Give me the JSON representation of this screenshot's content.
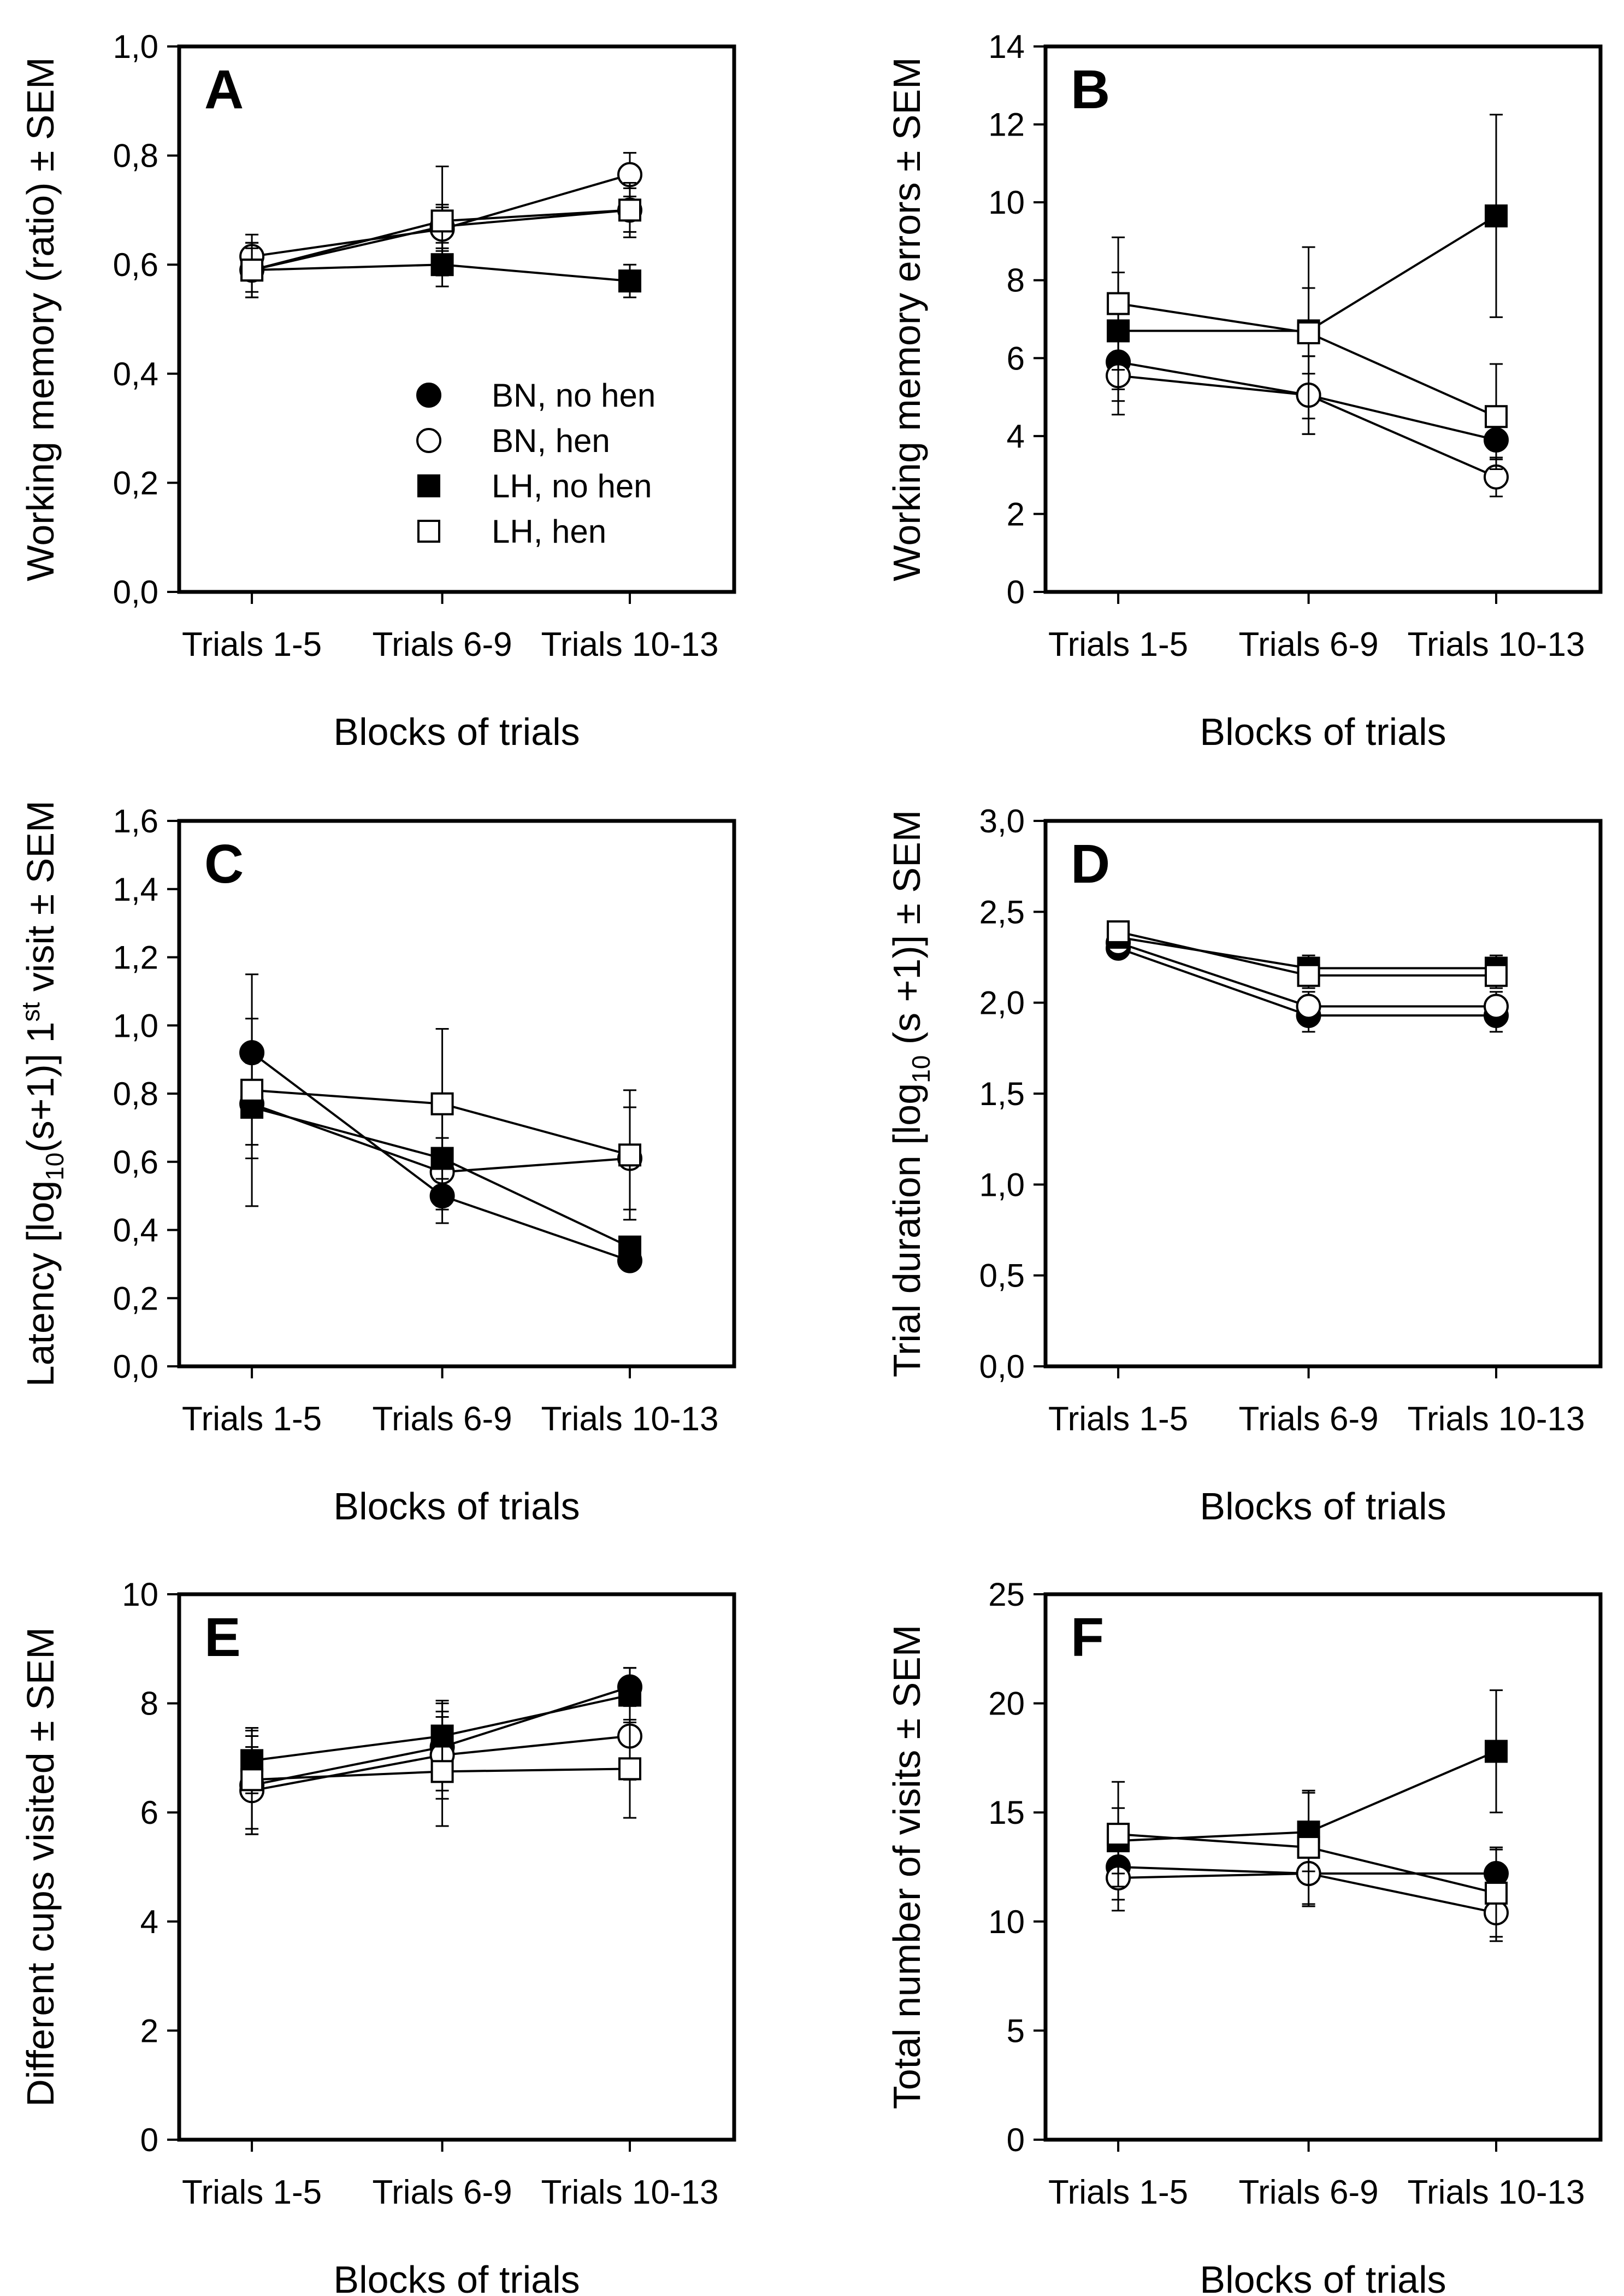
{
  "legend": [
    {
      "series": "BN_no_hen",
      "label": "BN, no hen",
      "marker": "circle",
      "fill": "#000000"
    },
    {
      "series": "BN_hen",
      "label": "BN, hen",
      "marker": "circle",
      "fill": "#ffffff"
    },
    {
      "series": "LH_no_hen",
      "label": "LH, no hen",
      "marker": "square",
      "fill": "#000000"
    },
    {
      "series": "LH_hen",
      "label": "LH, hen",
      "marker": "square",
      "fill": "#ffffff"
    }
  ],
  "chart_data": [
    {
      "panel": "A",
      "type": "line",
      "categories": [
        "Trials 1-5",
        "Trials 6-9",
        "Trials 10-13"
      ],
      "xlabel": "Blocks of trials",
      "ylabel": "Working memory (ratio) ± SEM",
      "ylim": [
        0,
        1
      ],
      "yticks": [
        "0,0",
        "0,2",
        "0,4",
        "0,6",
        "0,8",
        "1,0"
      ],
      "legend": true,
      "series": [
        {
          "name": "BN_no_hen",
          "values": [
            0.59,
            0.67,
            0.7
          ],
          "sem": [
            0.05,
            0.04,
            0.04
          ]
        },
        {
          "name": "BN_hen",
          "values": [
            0.615,
            0.665,
            0.765
          ],
          "sem": [
            0.04,
            0.04,
            0.04
          ]
        },
        {
          "name": "LH_no_hen",
          "values": [
            0.59,
            0.6,
            0.57
          ],
          "sem": [
            0.04,
            0.04,
            0.03
          ]
        },
        {
          "name": "LH_hen",
          "values": [
            0.59,
            0.68,
            0.7
          ],
          "sem": [
            0.05,
            0.1,
            0.05
          ]
        }
      ]
    },
    {
      "panel": "B",
      "type": "line",
      "categories": [
        "Trials 1-5",
        "Trials 6-9",
        "Trials 10-13"
      ],
      "xlabel": "Blocks of trials",
      "ylabel": "Working memory errors ± SEM",
      "ylim": [
        0,
        14
      ],
      "yticks": [
        "0",
        "2",
        "4",
        "6",
        "8",
        "10",
        "12",
        "14"
      ],
      "series": [
        {
          "name": "BN_no_hen",
          "values": [
            5.9,
            5.05,
            3.9
          ],
          "sem": [
            1.0,
            1.0,
            0.5
          ]
        },
        {
          "name": "BN_hen",
          "values": [
            5.55,
            5.05,
            2.95
          ],
          "sem": [
            1.0,
            1.0,
            0.5
          ]
        },
        {
          "name": "LH_no_hen",
          "values": [
            6.7,
            6.7,
            9.65
          ],
          "sem": [
            1.5,
            1.1,
            2.6
          ]
        },
        {
          "name": "LH_hen",
          "values": [
            7.4,
            6.65,
            4.5
          ],
          "sem": [
            1.7,
            2.2,
            1.35
          ]
        }
      ]
    },
    {
      "panel": "C",
      "type": "line",
      "categories": [
        "Trials 1-5",
        "Trials 6-9",
        "Trials 10-13"
      ],
      "xlabel": "Blocks of trials",
      "ylabel": "Latency [log",
      "ylabel_sub": "10",
      "ylabel_mid": "(s+1)] 1",
      "ylabel_sup": "st",
      "ylabel_end": " visit  ± SEM",
      "ylim": [
        0,
        1.6
      ],
      "yticks": [
        "0,0",
        "0,2",
        "0,4",
        "0,6",
        "0,8",
        "1,0",
        "1,2",
        "1,4",
        "1,6"
      ],
      "series": [
        {
          "name": "BN_no_hen",
          "values": [
            0.92,
            0.5,
            0.31
          ],
          "sem": [
            0.1,
            0.08,
            0.02
          ]
        },
        {
          "name": "BN_hen",
          "values": [
            0.77,
            0.57,
            0.61
          ],
          "sem": [
            0.12,
            0.1,
            0.15
          ]
        },
        {
          "name": "LH_no_hen",
          "values": [
            0.76,
            0.61,
            0.35
          ],
          "sem": [
            0.15,
            0.15,
            0.03
          ]
        },
        {
          "name": "LH_hen",
          "values": [
            0.81,
            0.77,
            0.62
          ],
          "sem": [
            0.34,
            0.22,
            0.19
          ]
        }
      ]
    },
    {
      "panel": "D",
      "type": "line",
      "categories": [
        "Trials 1-5",
        "Trials 6-9",
        "Trials 10-13"
      ],
      "xlabel": "Blocks of trials",
      "ylabel": "Trial duration [log",
      "ylabel_sub": "10",
      "ylabel_mid": " (s +1)] ± SEM",
      "ylim": [
        0,
        3
      ],
      "yticks": [
        "0,0",
        "0,5",
        "1,0",
        "1,5",
        "2,0",
        "2,5",
        "3,0"
      ],
      "series": [
        {
          "name": "BN_no_hen",
          "values": [
            2.3,
            1.93,
            1.93
          ],
          "sem": [
            0.04,
            0.09,
            0.09
          ]
        },
        {
          "name": "BN_hen",
          "values": [
            2.33,
            1.98,
            1.98
          ],
          "sem": [
            0.04,
            0.08,
            0.08
          ]
        },
        {
          "name": "LH_no_hen",
          "values": [
            2.36,
            2.19,
            2.19
          ],
          "sem": [
            0.04,
            0.07,
            0.07
          ]
        },
        {
          "name": "LH_hen",
          "values": [
            2.39,
            2.15,
            2.15
          ],
          "sem": [
            0.04,
            0.07,
            0.07
          ]
        }
      ]
    },
    {
      "panel": "E",
      "type": "line",
      "categories": [
        "Trials 1-5",
        "Trials 6-9",
        "Trials 10-13"
      ],
      "xlabel": "Blocks of trials",
      "ylabel": "Different cups visited ± SEM",
      "ylim": [
        0,
        10
      ],
      "yticks": [
        "0",
        "2",
        "4",
        "6",
        "8",
        "10"
      ],
      "series": [
        {
          "name": "BN_no_hen",
          "values": [
            6.5,
            7.2,
            8.3
          ],
          "sem": [
            0.9,
            0.8,
            0.35
          ]
        },
        {
          "name": "BN_hen",
          "values": [
            6.4,
            7.05,
            7.4
          ],
          "sem": [
            0.8,
            0.8,
            0.8
          ]
        },
        {
          "name": "LH_no_hen",
          "values": [
            6.95,
            7.4,
            8.15
          ],
          "sem": [
            0.6,
            0.65,
            0.5
          ]
        },
        {
          "name": "LH_hen",
          "values": [
            6.6,
            6.75,
            6.8
          ],
          "sem": [
            0.9,
            1.0,
            0.9
          ]
        }
      ]
    },
    {
      "panel": "F",
      "type": "line",
      "categories": [
        "Trials 1-5",
        "Trials 6-9",
        "Trials 10-13"
      ],
      "xlabel": "Blocks of trials",
      "ylabel": "Total number of visits ± SEM",
      "ylim": [
        0,
        25
      ],
      "yticks": [
        "0",
        "5",
        "10",
        "15",
        "20",
        "25"
      ],
      "series": [
        {
          "name": "BN_no_hen",
          "values": [
            12.5,
            12.2,
            12.2
          ],
          "sem": [
            1.5,
            1.5,
            1.2
          ]
        },
        {
          "name": "BN_hen",
          "values": [
            12.0,
            12.2,
            10.4
          ],
          "sem": [
            1.5,
            1.5,
            1.3
          ]
        },
        {
          "name": "LH_no_hen",
          "values": [
            13.7,
            14.1,
            17.8
          ],
          "sem": [
            1.5,
            1.8,
            2.8
          ]
        },
        {
          "name": "LH_hen",
          "values": [
            14.0,
            13.4,
            11.3
          ],
          "sem": [
            2.4,
            2.6,
            2.0
          ]
        }
      ]
    }
  ]
}
